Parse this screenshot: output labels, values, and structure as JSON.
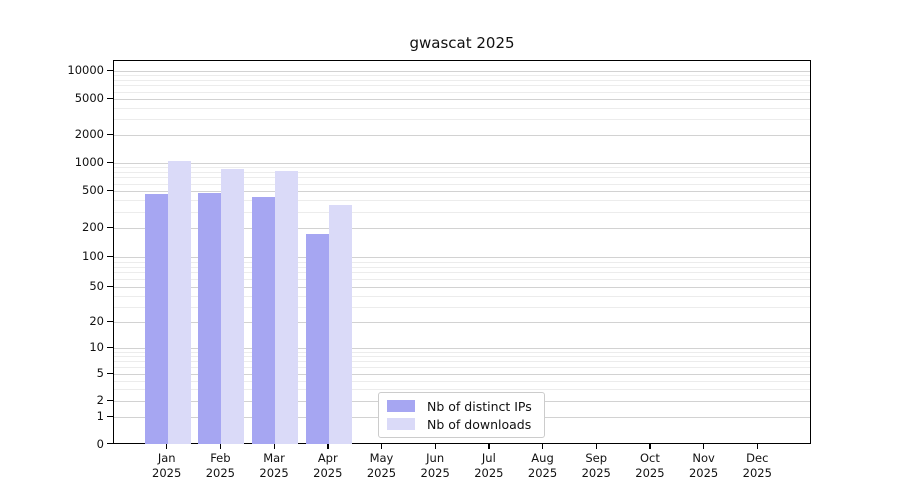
{
  "title": "gwascat 2025",
  "legend": {
    "items": [
      {
        "label": "Nb of distinct IPs"
      },
      {
        "label": "Nb of downloads"
      }
    ]
  },
  "chart_data": {
    "type": "bar",
    "title": "gwascat 2025",
    "xlabel": "",
    "ylabel": "",
    "yscale": "symlog",
    "grid": true,
    "legend_position": "lower-center",
    "x_year": "2025",
    "categories": [
      "Jan",
      "Feb",
      "Mar",
      "Apr",
      "May",
      "Jun",
      "Jul",
      "Aug",
      "Sep",
      "Oct",
      "Nov",
      "Dec"
    ],
    "series": [
      {
        "name": "Nb of distinct IPs",
        "color": "#a6a6f2",
        "values": [
          460,
          480,
          435,
          175,
          0,
          0,
          0,
          0,
          0,
          0,
          0,
          0
        ]
      },
      {
        "name": "Nb of downloads",
        "color": "#dadaf8",
        "values": [
          1050,
          870,
          815,
          355,
          0,
          0,
          0,
          0,
          0,
          0,
          0,
          0
        ]
      }
    ],
    "yticks": [
      10000,
      5000,
      2000,
      1000,
      500,
      200,
      100,
      50,
      20,
      10,
      5,
      2,
      1,
      0
    ],
    "ylim": [
      0,
      13000
    ]
  }
}
